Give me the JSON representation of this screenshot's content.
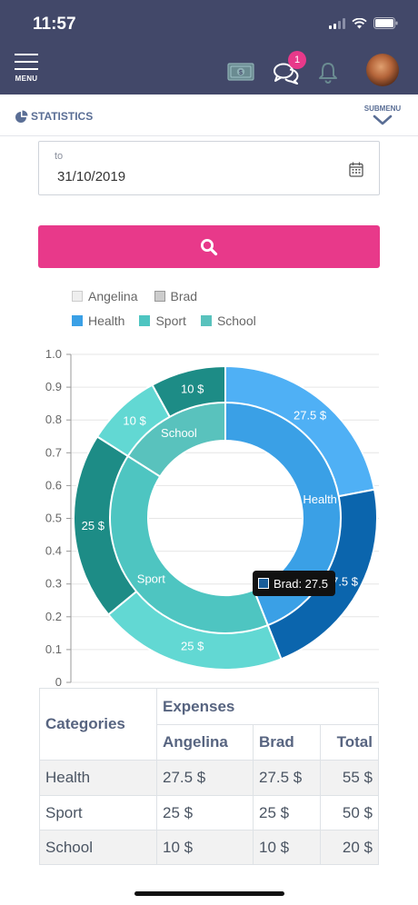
{
  "status_bar": {
    "time": "11:57"
  },
  "header": {
    "menu_label": "MENU",
    "notification_count": "1"
  },
  "subheader": {
    "title": "STATISTICS",
    "submenu_label": "SUBMENU"
  },
  "date_field": {
    "label": "to",
    "value": "31/10/2019"
  },
  "legend": [
    {
      "name": "Angelina",
      "color": "#eeeeee"
    },
    {
      "name": "Brad",
      "color": "#cccccc"
    },
    {
      "name": "Health",
      "color": "#3aa0e6"
    },
    {
      "name": "Sport",
      "color": "#4ec5c1"
    },
    {
      "name": "School",
      "color": "#59c2bd"
    }
  ],
  "chart_data": {
    "type": "pie",
    "variant": "doughnut, two rings",
    "yticks": [
      "0",
      "0.1",
      "0.2",
      "0.3",
      "0.4",
      "0.5",
      "0.6",
      "0.7",
      "0.8",
      "0.9",
      "1.0"
    ],
    "ylim": [
      0,
      1
    ],
    "grid": true,
    "inner_ring": {
      "categories": [
        "Health",
        "Sport",
        "School"
      ],
      "values": [
        55,
        50,
        20
      ],
      "labels": [
        "Health",
        "Sport",
        "School"
      ],
      "colors": [
        "#3aa0e6",
        "#4ec5c1",
        "#59c2bd"
      ]
    },
    "outer_ring": {
      "segments": [
        {
          "category": "Health",
          "person": "Angelina",
          "value": 27.5,
          "label": "27.5 $",
          "color": "#4fb0f5"
        },
        {
          "category": "Health",
          "person": "Brad",
          "value": 27.5,
          "label": "27.5 $",
          "color": "#0b65ad"
        },
        {
          "category": "Sport",
          "person": "Angelina",
          "value": 25,
          "label": "25 $",
          "color": "#62d8d3"
        },
        {
          "category": "Sport",
          "person": "Brad",
          "value": 25,
          "label": "25 $",
          "color": "#1d8c86"
        },
        {
          "category": "School",
          "person": "Angelina",
          "value": 10,
          "label": "10 $",
          "color": "#62d8d3"
        },
        {
          "category": "School",
          "person": "Brad",
          "value": 10,
          "label": "10 $",
          "color": "#1d8c86"
        }
      ]
    }
  },
  "tooltip": {
    "text": "Brad: 27.5"
  },
  "table": {
    "categories_header": "Categories",
    "expenses_header": "Expenses",
    "columns": [
      "Angelina",
      "Brad",
      "Total"
    ],
    "rows": [
      {
        "category": "Health",
        "angelina": "27.5 $",
        "brad": "27.5 $",
        "total": "55 $"
      },
      {
        "category": "Sport",
        "angelina": "25 $",
        "brad": "25 $",
        "total": "50 $"
      },
      {
        "category": "School",
        "angelina": "10 $",
        "brad": "10 $",
        "total": "20 $"
      }
    ]
  }
}
